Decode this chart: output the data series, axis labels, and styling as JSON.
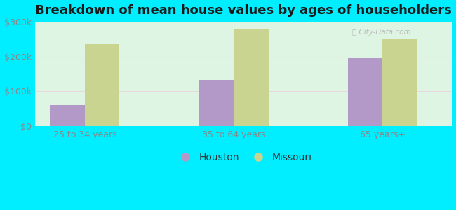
{
  "title": "Breakdown of mean house values by ages of householders",
  "categories": [
    "25 to 34 years",
    "35 to 64 years",
    "65 years+"
  ],
  "houston_values": [
    60000,
    130000,
    195000
  ],
  "missouri_values": [
    235000,
    280000,
    250000
  ],
  "houston_color": "#b399c8",
  "missouri_color": "#c8d490",
  "ylim": [
    0,
    300000
  ],
  "yticks": [
    0,
    100000,
    200000,
    300000
  ],
  "ytick_labels": [
    "$0",
    "$100k",
    "$200k",
    "$300k"
  ],
  "legend_houston": "Houston",
  "legend_missouri": "Missouri",
  "bg_outer": "#00eeff",
  "bg_plot_top_left": "#c8f0d8",
  "bg_plot_bottom_right": "#f0fff4",
  "title_fontsize": 13,
  "tick_fontsize": 9,
  "legend_fontsize": 10,
  "bar_width": 0.35,
  "watermark": "City-Data.com"
}
